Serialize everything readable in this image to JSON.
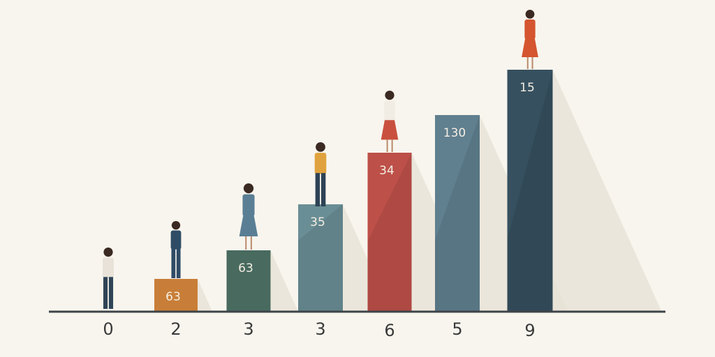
{
  "chart_data": {
    "type": "bar",
    "categories": [
      "0",
      "2",
      "3",
      "3",
      "6",
      "5",
      "9"
    ],
    "values": [
      null,
      63,
      63,
      35,
      34,
      130,
      15
    ],
    "data_labels": [
      "",
      "63",
      "63",
      "35",
      "34",
      "130",
      "15"
    ],
    "colors": [
      "",
      "#d9893d",
      "#4f7468",
      "#6a8e95",
      "#bd5049",
      "#607f8f",
      "#36505f"
    ],
    "title": "",
    "xlabel": "",
    "ylabel": "",
    "grid": false,
    "legend": "none",
    "figures": [
      "person-walking",
      "person-with-phone",
      "woman-reading",
      "man-standing",
      "woman-standing",
      "",
      "woman-dancing"
    ]
  }
}
